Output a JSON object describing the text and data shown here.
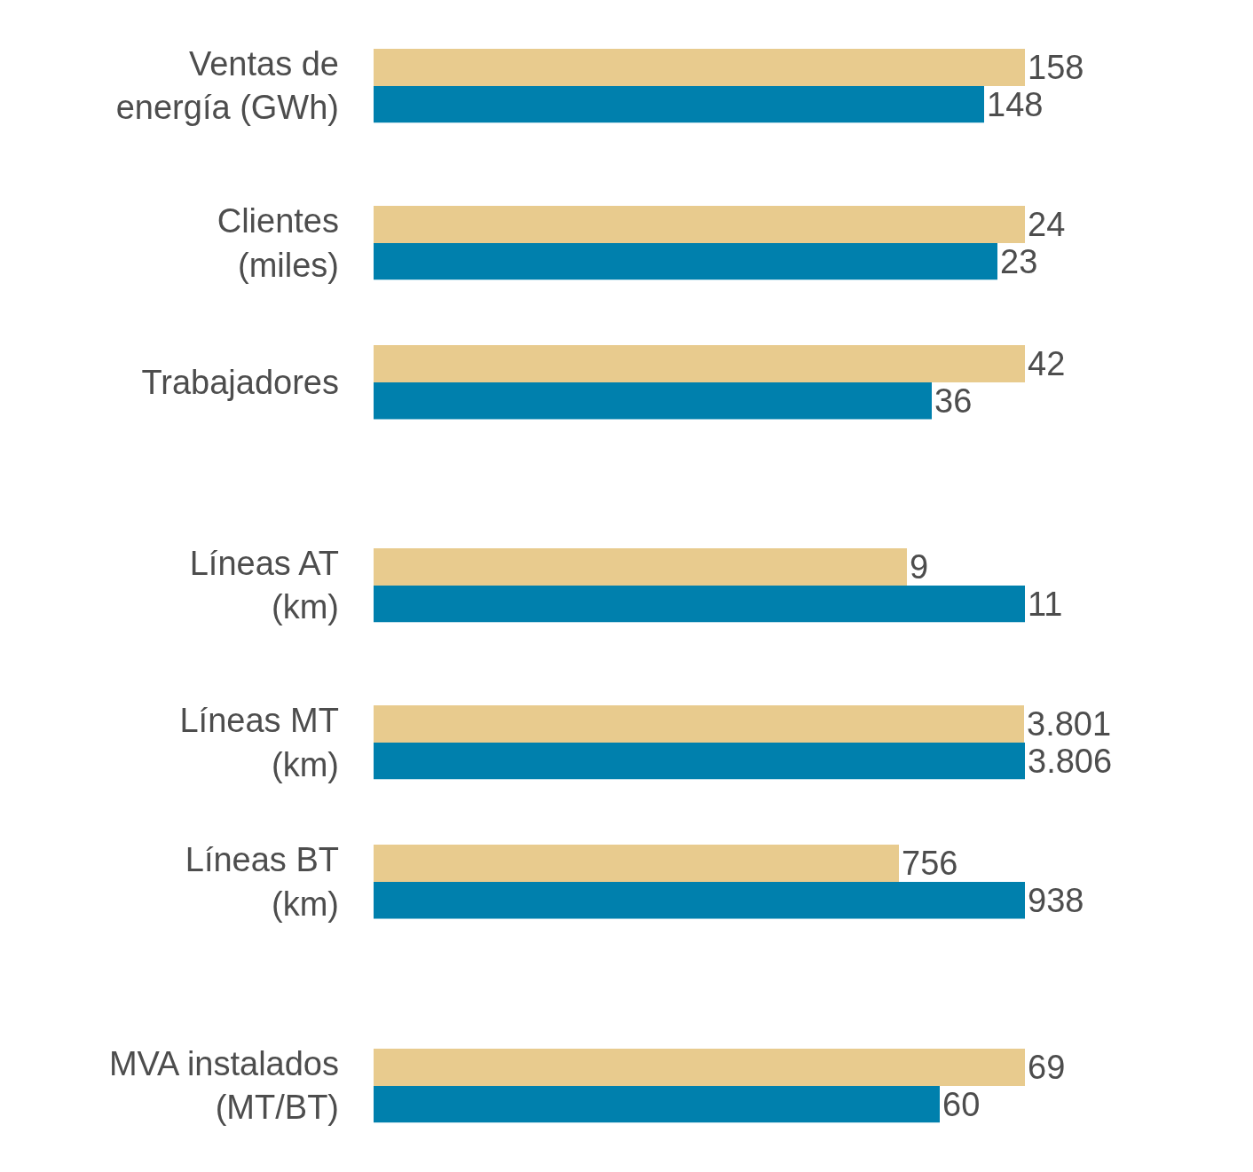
{
  "chart_data": [
    {
      "type": "bar",
      "orientation": "horizontal",
      "tick_labels": "y",
      "categories": [
        "Ventas de\nenergía (GWh)"
      ],
      "series": [
        {
          "color": "#e8cb8e",
          "values": [
            158
          ],
          "value_labels": [
            "158"
          ]
        },
        {
          "color": "#0080ad",
          "values": [
            148
          ],
          "value_labels": [
            "148"
          ]
        }
      ]
    },
    {
      "type": "bar",
      "orientation": "horizontal",
      "tick_labels": "y",
      "categories": [
        "Clientes\n(miles)"
      ],
      "series": [
        {
          "color": "#e8cb8e",
          "values": [
            24
          ],
          "value_labels": [
            "24"
          ]
        },
        {
          "color": "#0080ad",
          "values": [
            23
          ],
          "value_labels": [
            "23"
          ]
        }
      ]
    },
    {
      "type": "bar",
      "orientation": "horizontal",
      "tick_labels": "y",
      "categories": [
        "Trabajadores"
      ],
      "series": [
        {
          "color": "#e8cb8e",
          "values": [
            42
          ],
          "value_labels": [
            "42"
          ]
        },
        {
          "color": "#0080ad",
          "values": [
            36
          ],
          "value_labels": [
            "36"
          ]
        }
      ]
    },
    {
      "type": "bar",
      "orientation": "horizontal",
      "tick_labels": "y",
      "categories": [
        "Líneas AT\n(km)"
      ],
      "series": [
        {
          "color": "#e8cb8e",
          "values": [
            9
          ],
          "value_labels": [
            "9"
          ]
        },
        {
          "color": "#0080ad",
          "values": [
            11
          ],
          "value_labels": [
            "11"
          ]
        }
      ]
    },
    {
      "type": "bar",
      "orientation": "horizontal",
      "tick_labels": "y",
      "categories": [
        "Líneas MT\n(km)"
      ],
      "series": [
        {
          "color": "#e8cb8e",
          "values": [
            3801
          ],
          "value_labels": [
            "3.801"
          ]
        },
        {
          "color": "#0080ad",
          "values": [
            3806
          ],
          "value_labels": [
            "3.806"
          ]
        }
      ]
    },
    {
      "type": "bar",
      "orientation": "horizontal",
      "tick_labels": "y",
      "categories": [
        "Líneas BT\n(km)"
      ],
      "series": [
        {
          "color": "#e8cb8e",
          "values": [
            756
          ],
          "value_labels": [
            "756"
          ]
        },
        {
          "color": "#0080ad",
          "values": [
            938
          ],
          "value_labels": [
            "938"
          ]
        }
      ]
    },
    {
      "type": "bar",
      "orientation": "horizontal",
      "tick_labels": "y",
      "categories": [
        "MVA instalados\n(MT/BT)"
      ],
      "series": [
        {
          "color": "#e8cb8e",
          "values": [
            69
          ],
          "value_labels": [
            "69"
          ]
        },
        {
          "color": "#0080ad",
          "values": [
            60
          ],
          "value_labels": [
            "60"
          ]
        }
      ]
    }
  ]
}
